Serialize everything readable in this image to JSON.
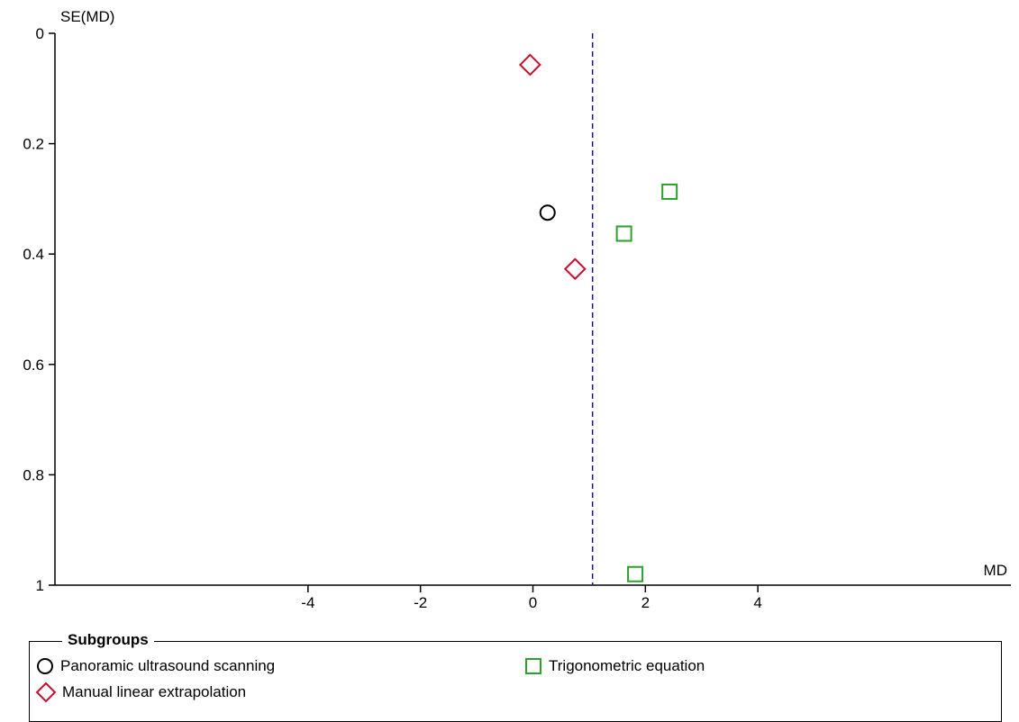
{
  "chart_data": {
    "type": "scatter",
    "xlabel": "MD",
    "ylabel": "SE(MD)",
    "xlim": [
      -8.5,
      8.5
    ],
    "ylim": [
      0,
      1
    ],
    "y_inverted": true,
    "x_ticks": [
      "-4",
      "-2",
      "0",
      "2",
      "4"
    ],
    "x_tick_values": [
      -4,
      -2,
      0,
      2,
      4
    ],
    "y_ticks": [
      "0",
      "0.2",
      "0.4",
      "0.6",
      "0.8",
      "1"
    ],
    "y_tick_values": [
      0,
      0.2,
      0.4,
      0.6,
      0.8,
      1
    ],
    "reference_line": {
      "x": 1.06,
      "style": "dashed",
      "color": "#1a1a8c"
    },
    "legend_title": "Subgroups",
    "legend_placement": "bottom",
    "series": [
      {
        "name": "Panoramic ultrasound scanning",
        "marker": "circle",
        "color": "#000000",
        "points": [
          {
            "x": 0.26,
            "y": 0.325
          }
        ]
      },
      {
        "name": "Trigonometric equation",
        "marker": "square",
        "color": "#2ca02c",
        "points": [
          {
            "x": 2.43,
            "y": 0.287
          },
          {
            "x": 1.62,
            "y": 0.363
          },
          {
            "x": 1.82,
            "y": 0.98
          }
        ]
      },
      {
        "name": "Manual linear extrapolation",
        "marker": "diamond",
        "color": "#c8102e",
        "points": [
          {
            "x": -0.05,
            "y": 0.057
          },
          {
            "x": 0.75,
            "y": 0.427
          }
        ]
      }
    ]
  }
}
